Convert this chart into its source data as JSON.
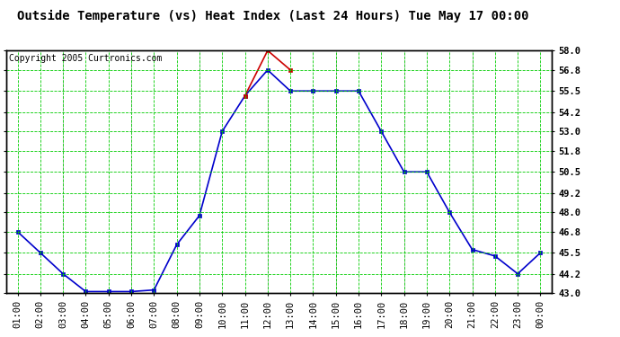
{
  "title": "Outside Temperature (vs) Heat Index (Last 24 Hours) Tue May 17 00:00",
  "copyright": "Copyright 2005 Curtronics.com",
  "x_labels": [
    "01:00",
    "02:00",
    "03:00",
    "04:00",
    "05:00",
    "06:00",
    "07:00",
    "08:00",
    "09:00",
    "10:00",
    "11:00",
    "12:00",
    "13:00",
    "14:00",
    "15:00",
    "16:00",
    "17:00",
    "18:00",
    "19:00",
    "20:00",
    "21:00",
    "22:00",
    "23:00",
    "00:00"
  ],
  "temp_values": [
    46.8,
    45.5,
    44.2,
    43.1,
    43.1,
    43.1,
    43.2,
    46.0,
    47.8,
    53.0,
    55.2,
    56.8,
    55.5,
    55.5,
    55.5,
    55.5,
    53.0,
    50.5,
    50.5,
    48.0,
    45.7,
    45.3,
    44.2,
    45.5
  ],
  "heat_values": [
    null,
    null,
    null,
    null,
    null,
    null,
    null,
    null,
    null,
    null,
    55.2,
    58.0,
    56.8,
    null,
    null,
    null,
    null,
    null,
    null,
    null,
    null,
    null,
    null,
    null
  ],
  "ylim": [
    43.0,
    58.0
  ],
  "yticks": [
    43.0,
    44.2,
    45.5,
    46.8,
    48.0,
    49.2,
    50.5,
    51.8,
    53.0,
    54.2,
    55.5,
    56.8,
    58.0
  ],
  "bg_color": "#ffffff",
  "plot_bg": "#ffffff",
  "grid_color": "#00cc00",
  "line_color_temp": "#0000cc",
  "line_color_heat": "#cc0000",
  "title_fontsize": 10,
  "copyright_fontsize": 7,
  "tick_fontsize": 7.5
}
